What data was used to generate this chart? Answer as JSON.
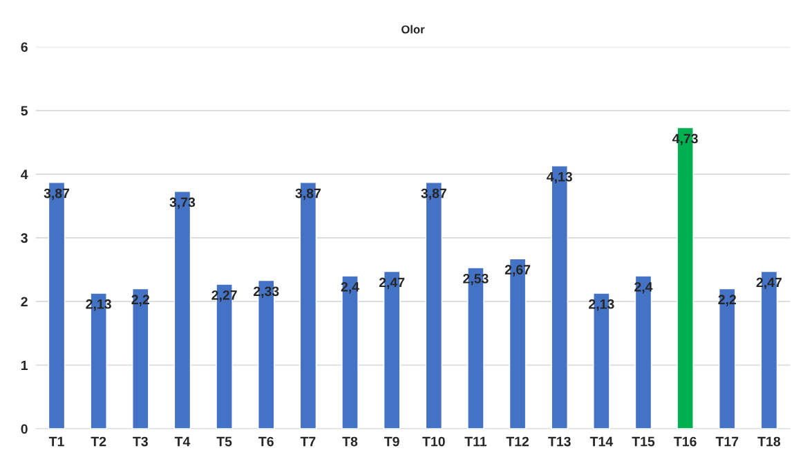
{
  "chart_data": {
    "type": "bar",
    "title": "Olor",
    "categories": [
      "T1",
      "T2",
      "T3",
      "T4",
      "T5",
      "T6",
      "T7",
      "T8",
      "T9",
      "T10",
      "T11",
      "T12",
      "T13",
      "T14",
      "T15",
      "T16",
      "T17",
      "T18"
    ],
    "values": [
      3.87,
      2.13,
      2.2,
      3.73,
      2.27,
      2.33,
      3.87,
      2.4,
      2.47,
      3.87,
      2.53,
      2.67,
      4.13,
      2.13,
      2.4,
      4.73,
      2.2,
      2.47
    ],
    "colors": [
      "#4472c4",
      "#4472c4",
      "#4472c4",
      "#4472c4",
      "#4472c4",
      "#4472c4",
      "#4472c4",
      "#4472c4",
      "#4472c4",
      "#4472c4",
      "#4472c4",
      "#4472c4",
      "#4472c4",
      "#4472c4",
      "#4472c4",
      "#00b050",
      "#4472c4",
      "#4472c4"
    ],
    "value_labels": [
      "3,87",
      "2,13",
      "2,2",
      "3,73",
      "2,27",
      "2,33",
      "3,87",
      "2,4",
      "2,47",
      "3,87",
      "2,53",
      "2,67",
      "4,13",
      "2,13",
      "2,4",
      "4,73",
      "2,2",
      "2,47"
    ],
    "ylim": [
      0,
      6
    ],
    "yticks": [
      0,
      1,
      2,
      3,
      4,
      5,
      6
    ],
    "grid": "y",
    "legend": false
  }
}
